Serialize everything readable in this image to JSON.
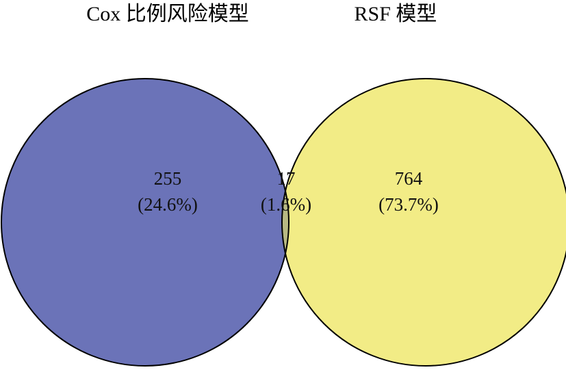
{
  "sets": [
    {
      "name": "Cox 比例风险模型",
      "color": "#6b73b8"
    },
    {
      "name": "RSF 模型",
      "color": "#f2ec86"
    }
  ],
  "overlap_color": "#b8b983",
  "regions": {
    "left_only": {
      "count": "255",
      "percent": "(24.6%)"
    },
    "both": {
      "count": "17",
      "percent": "(1.6%)"
    },
    "right_only": {
      "count": "764",
      "percent": "(73.7%)"
    }
  }
}
